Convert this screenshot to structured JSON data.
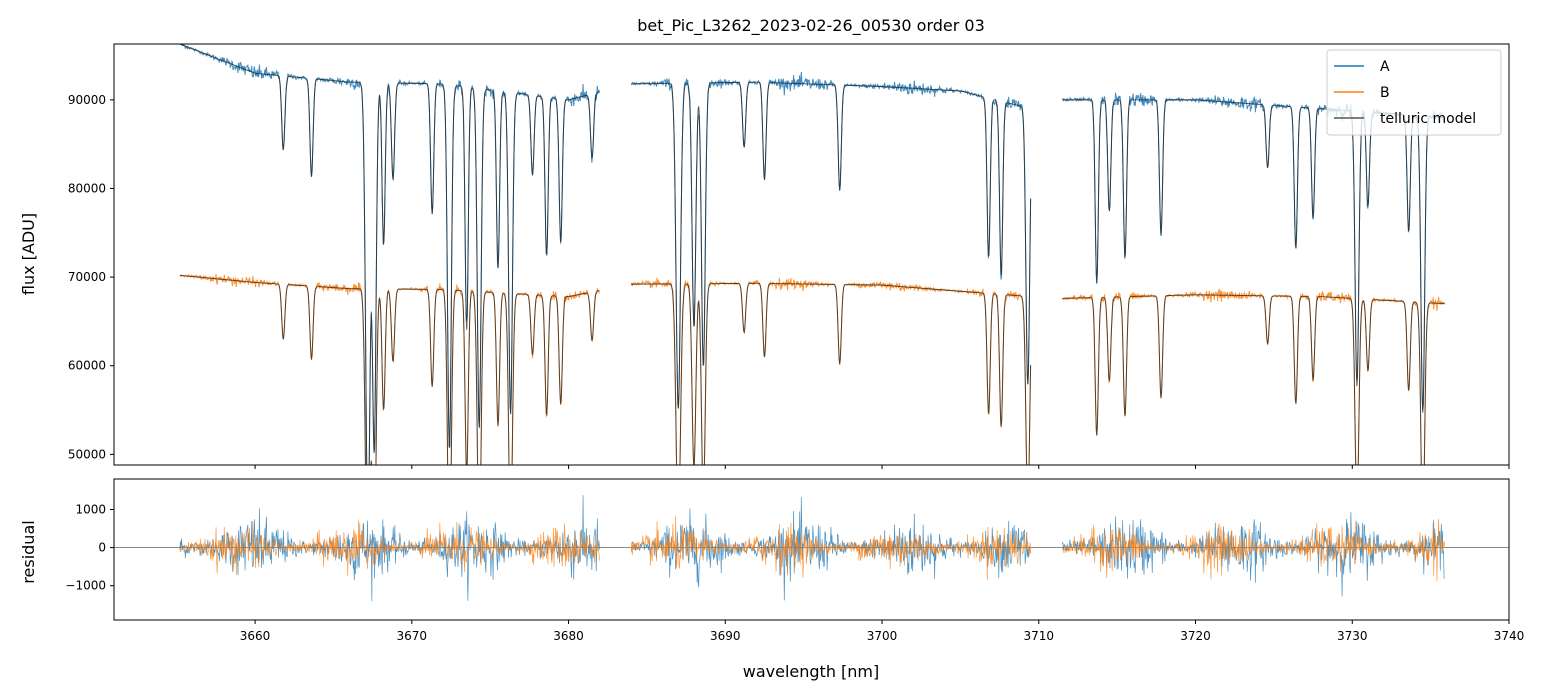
{
  "chart_data": {
    "type": "line",
    "title": "bet_Pic_L3262_2023-02-26_00530  order 03",
    "panels": [
      {
        "name": "flux",
        "ylabel": "flux [ADU]",
        "xlim": [
          3651,
          3740
        ],
        "ylim": [
          48800,
          96300
        ],
        "yticks": [
          50000,
          60000,
          70000,
          80000,
          90000
        ],
        "ytick_labels": [
          "50000",
          "60000",
          "70000",
          "80000",
          "90000"
        ]
      },
      {
        "name": "residual",
        "ylabel": "residual",
        "xlabel": "wavelength [nm]",
        "xlim": [
          3651,
          3740
        ],
        "ylim": [
          -1900,
          1800
        ],
        "yticks": [
          -1000,
          0,
          1000
        ],
        "ytick_labels": [
          "−1000",
          "0",
          "1000"
        ],
        "xticks": [
          3660,
          3670,
          3680,
          3690,
          3700,
          3710,
          3720,
          3730,
          3740
        ],
        "xtick_labels": [
          "3660",
          "3670",
          "3680",
          "3690",
          "3700",
          "3710",
          "3720",
          "3730",
          "3740"
        ]
      }
    ],
    "legend": {
      "placement": "top-right",
      "entries": [
        {
          "label": "A",
          "color": "#1f77b4"
        },
        {
          "label": "B",
          "color": "#ff7f0e"
        },
        {
          "label": "telluric model",
          "color": "#333333"
        }
      ]
    },
    "series": [
      {
        "name": "A",
        "color": "#1f77b4",
        "segments": [
          [
            3655.2,
            3682.0
          ],
          [
            3684.0,
            3709.5
          ],
          [
            3711.5,
            3735.9
          ]
        ],
        "continuum": [
          [
            3655.2,
            96300
          ],
          [
            3660,
            93000
          ],
          [
            3666,
            92000
          ],
          [
            3672,
            91800
          ],
          [
            3680,
            90000
          ],
          [
            3684,
            91800
          ],
          [
            3692,
            92000
          ],
          [
            3700,
            91500
          ],
          [
            3705,
            91000
          ],
          [
            3709.5,
            89000
          ],
          [
            3711.5,
            90000
          ],
          [
            3720,
            90000
          ],
          [
            3728,
            89000
          ],
          [
            3735.9,
            88000
          ]
        ],
        "residual_noise": 420
      },
      {
        "name": "B",
        "color": "#ff7f0e",
        "segments": [
          [
            3655.2,
            3682.0
          ],
          [
            3684.0,
            3709.5
          ],
          [
            3711.5,
            3735.9
          ]
        ],
        "continuum": [
          [
            3655.2,
            70200
          ],
          [
            3660,
            69400
          ],
          [
            3666,
            68700
          ],
          [
            3672,
            68600
          ],
          [
            3680,
            67800
          ],
          [
            3684,
            69200
          ],
          [
            3692,
            69300
          ],
          [
            3700,
            69100
          ],
          [
            3705,
            68400
          ],
          [
            3709.5,
            67800
          ],
          [
            3711.5,
            67600
          ],
          [
            3720,
            68000
          ],
          [
            3728,
            67800
          ],
          [
            3735.9,
            67000
          ]
        ],
        "residual_noise": 300
      }
    ],
    "absorption_lines": [
      {
        "center": 3661.8,
        "depth": 0.09,
        "width": 0.1
      },
      {
        "center": 3663.6,
        "depth": 0.12,
        "width": 0.1
      },
      {
        "center": 3667.2,
        "depth": 0.55,
        "width": 0.14
      },
      {
        "center": 3667.6,
        "depth": 0.45,
        "width": 0.12
      },
      {
        "center": 3668.2,
        "depth": 0.2,
        "width": 0.1
      },
      {
        "center": 3668.8,
        "depth": 0.12,
        "width": 0.1
      },
      {
        "center": 3671.3,
        "depth": 0.16,
        "width": 0.1
      },
      {
        "center": 3672.4,
        "depth": 0.45,
        "width": 0.12
      },
      {
        "center": 3673.5,
        "depth": 0.3,
        "width": 0.1
      },
      {
        "center": 3674.3,
        "depth": 0.42,
        "width": 0.12
      },
      {
        "center": 3675.5,
        "depth": 0.22,
        "width": 0.1
      },
      {
        "center": 3676.3,
        "depth": 0.4,
        "width": 0.12
      },
      {
        "center": 3677.7,
        "depth": 0.1,
        "width": 0.1
      },
      {
        "center": 3678.6,
        "depth": 0.2,
        "width": 0.1
      },
      {
        "center": 3679.5,
        "depth": 0.18,
        "width": 0.1
      },
      {
        "center": 3681.5,
        "depth": 0.08,
        "width": 0.1
      },
      {
        "center": 3687.0,
        "depth": 0.4,
        "width": 0.14
      },
      {
        "center": 3688.0,
        "depth": 0.3,
        "width": 0.12
      },
      {
        "center": 3688.6,
        "depth": 0.35,
        "width": 0.12
      },
      {
        "center": 3691.2,
        "depth": 0.08,
        "width": 0.1
      },
      {
        "center": 3692.5,
        "depth": 0.12,
        "width": 0.1
      },
      {
        "center": 3697.3,
        "depth": 0.13,
        "width": 0.1
      },
      {
        "center": 3706.8,
        "depth": 0.2,
        "width": 0.1
      },
      {
        "center": 3707.6,
        "depth": 0.22,
        "width": 0.1
      },
      {
        "center": 3709.3,
        "depth": 0.35,
        "width": 0.12
      },
      {
        "center": 3713.7,
        "depth": 0.23,
        "width": 0.1
      },
      {
        "center": 3714.5,
        "depth": 0.14,
        "width": 0.1
      },
      {
        "center": 3715.5,
        "depth": 0.2,
        "width": 0.1
      },
      {
        "center": 3717.8,
        "depth": 0.17,
        "width": 0.1
      },
      {
        "center": 3724.6,
        "depth": 0.08,
        "width": 0.1
      },
      {
        "center": 3726.4,
        "depth": 0.18,
        "width": 0.1
      },
      {
        "center": 3727.5,
        "depth": 0.14,
        "width": 0.1
      },
      {
        "center": 3730.3,
        "depth": 0.35,
        "width": 0.12
      },
      {
        "center": 3731.0,
        "depth": 0.12,
        "width": 0.1
      },
      {
        "center": 3733.6,
        "depth": 0.15,
        "width": 0.1
      },
      {
        "center": 3734.5,
        "depth": 0.38,
        "width": 0.12
      }
    ]
  }
}
